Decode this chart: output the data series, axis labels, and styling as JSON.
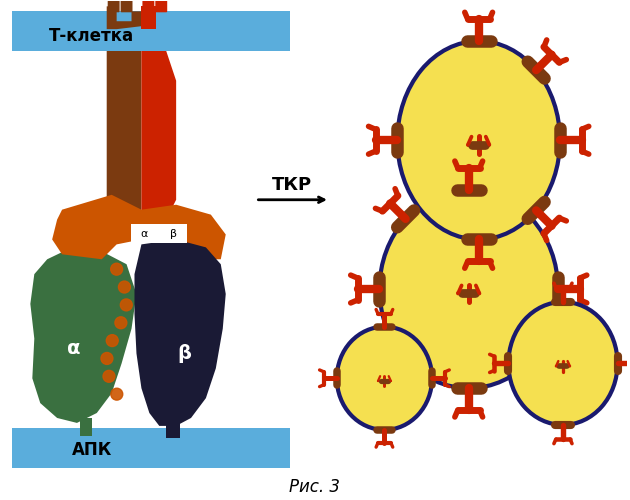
{
  "title": "Рис. 3",
  "tcell_label": "Т-клетка",
  "apk_label": "АПК",
  "tkr_label": "ТКР",
  "alpha_label": "α",
  "beta_label": "β",
  "bg_color": "#ffffff",
  "tcell_bar_color": "#5aaddc",
  "red_color": "#cc2200",
  "brown_color": "#7B3A10",
  "orange_color": "#cc5500",
  "green_color": "#3a7040",
  "black_domain": "#1a1a35",
  "yellow_particle": "#f5e050",
  "navy_circle": "#1a1a6e",
  "figsize": [
    6.3,
    5.0
  ],
  "dpi": 100
}
